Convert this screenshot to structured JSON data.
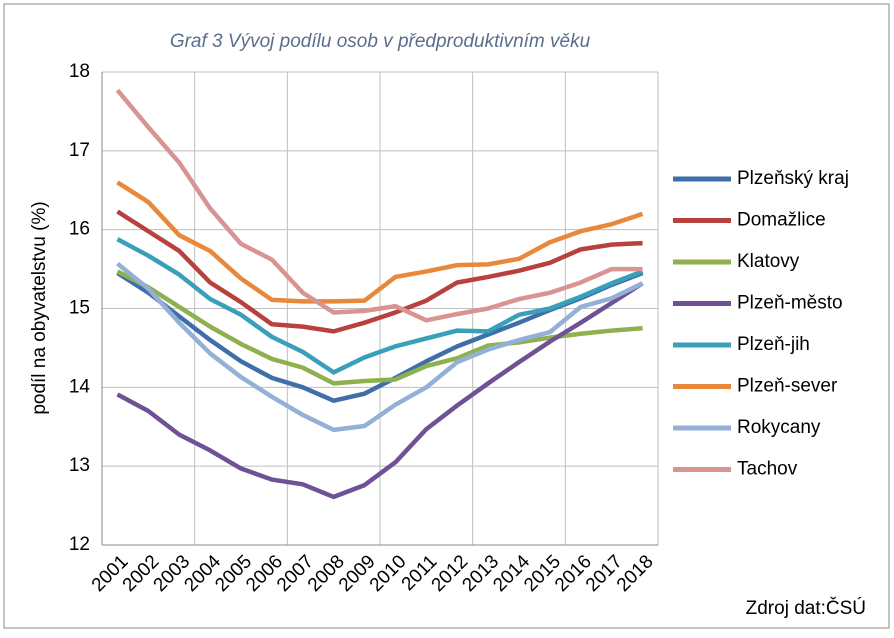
{
  "chart_data": {
    "type": "line",
    "title": "Graf 3 Vývoj podílu osob v předproduktivním věku",
    "ylabel": "podíl na obyvatelstvu (%)",
    "source": "Zdroj dat:ČSÚ",
    "categories": [
      "2001",
      "2002",
      "2003",
      "2004",
      "2005",
      "2006",
      "2007",
      "2008",
      "2009",
      "2010",
      "2011",
      "2012",
      "2013",
      "2014",
      "2015",
      "2016",
      "2017",
      "2018"
    ],
    "ylim": [
      12,
      18
    ],
    "yticks": [
      12,
      13,
      14,
      15,
      16,
      17,
      18
    ],
    "grid": true,
    "legend": "right",
    "series": [
      {
        "name": "Plzeňský kraj",
        "color": "#3f6fa8",
        "values": [
          15.45,
          15.2,
          14.9,
          14.6,
          14.33,
          14.12,
          14.0,
          13.83,
          13.92,
          14.12,
          14.33,
          14.52,
          14.67,
          14.82,
          14.98,
          15.13,
          15.3,
          15.45
        ]
      },
      {
        "name": "Domažlice",
        "color": "#b8413e",
        "values": [
          16.23,
          15.98,
          15.73,
          15.33,
          15.08,
          14.8,
          14.77,
          14.71,
          14.82,
          14.95,
          15.1,
          15.33,
          15.4,
          15.48,
          15.58,
          15.75,
          15.81,
          15.83
        ]
      },
      {
        "name": "Klatovy",
        "color": "#8eb04e",
        "values": [
          15.47,
          15.27,
          15.02,
          14.77,
          14.55,
          14.36,
          14.25,
          14.05,
          14.08,
          14.1,
          14.27,
          14.37,
          14.53,
          14.57,
          14.63,
          14.68,
          14.72,
          14.75
        ]
      },
      {
        "name": "Plzeň-město",
        "color": "#6f5196",
        "values": [
          13.91,
          13.7,
          13.4,
          13.2,
          12.97,
          12.83,
          12.77,
          12.61,
          12.76,
          13.05,
          13.47,
          13.77,
          14.05,
          14.32,
          14.58,
          14.82,
          15.07,
          15.32
        ]
      },
      {
        "name": "Plzeň-jih",
        "color": "#3a9fb8",
        "values": [
          15.88,
          15.67,
          15.43,
          15.12,
          14.92,
          14.64,
          14.45,
          14.19,
          14.38,
          14.52,
          14.62,
          14.72,
          14.71,
          14.92,
          15.0,
          15.15,
          15.32,
          15.47
        ]
      },
      {
        "name": "Plzeň-sever",
        "color": "#e8883a",
        "values": [
          16.6,
          16.35,
          15.93,
          15.73,
          15.38,
          15.11,
          15.09,
          15.09,
          15.1,
          15.4,
          15.47,
          15.55,
          15.56,
          15.63,
          15.84,
          15.98,
          16.07,
          16.2
        ]
      },
      {
        "name": "Rokycany",
        "color": "#94b0d6",
        "values": [
          15.57,
          15.25,
          14.82,
          14.43,
          14.13,
          13.88,
          13.65,
          13.46,
          13.51,
          13.78,
          14.0,
          14.32,
          14.48,
          14.6,
          14.7,
          15.02,
          15.13,
          15.32
        ]
      },
      {
        "name": "Tachov",
        "color": "#d89492",
        "values": [
          17.77,
          17.3,
          16.85,
          16.27,
          15.82,
          15.62,
          15.2,
          14.95,
          14.97,
          15.03,
          14.85,
          14.93,
          15.0,
          15.12,
          15.2,
          15.33,
          15.5,
          15.5
        ]
      }
    ]
  }
}
